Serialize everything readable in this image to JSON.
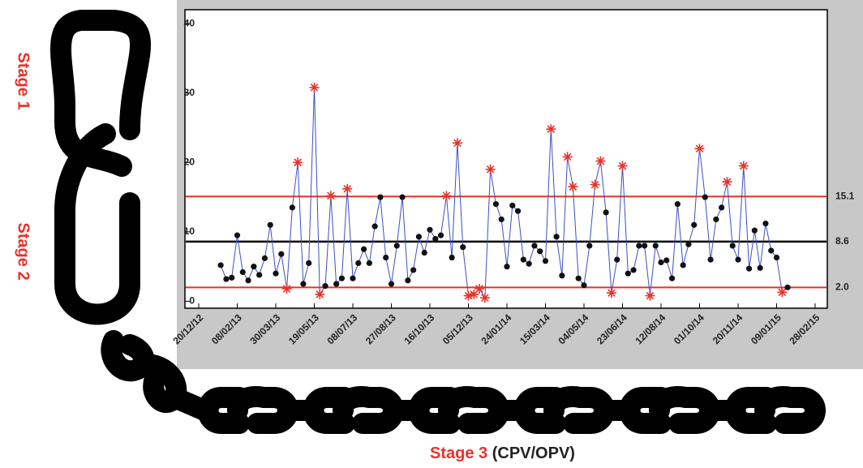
{
  "chart_data": {
    "type": "line",
    "categories": [
      "20/12/12",
      null,
      null,
      null,
      null,
      null,
      null,
      "08/02/13",
      null,
      null,
      null,
      null,
      null,
      null,
      "30/03/13",
      null,
      null,
      null,
      null,
      null,
      null,
      "19/05/13",
      null,
      null,
      null,
      null,
      null,
      null,
      "08/07/13",
      null,
      null,
      null,
      null,
      null,
      null,
      "27/08/13",
      null,
      null,
      null,
      null,
      null,
      null,
      "16/10/13",
      null,
      null,
      null,
      null,
      null,
      null,
      "05/12/13",
      null,
      null,
      null,
      null,
      null,
      null,
      "24/01/14",
      null,
      null,
      null,
      null,
      null,
      null,
      "15/03/14",
      null,
      null,
      null,
      null,
      null,
      null,
      "04/05/14",
      null,
      null,
      null,
      null,
      null,
      null,
      "23/06/14",
      null,
      null,
      null,
      null,
      null,
      null,
      "12/08/14",
      null,
      null,
      null,
      null,
      null,
      null,
      "01/10/14",
      null,
      null,
      null,
      null,
      null,
      null,
      "20/11/14",
      null,
      null,
      null,
      null,
      null,
      null,
      "09/01/15",
      null,
      null,
      null,
      null,
      null,
      null,
      "28/02/15"
    ],
    "values": [
      null,
      null,
      null,
      null,
      5.2,
      3.2,
      3.4,
      9.5,
      4.2,
      3,
      5,
      3.8,
      6.2,
      11,
      4,
      6.8,
      1.8,
      13.5,
      20,
      2.5,
      5.5,
      30.8,
      1,
      2.2,
      15.2,
      2.5,
      3.3,
      16.2,
      3.3,
      5.5,
      7.5,
      5.5,
      10.8,
      15,
      6.3,
      2.5,
      8,
      15,
      3,
      4.5,
      9.3,
      7,
      10.3,
      9,
      9.5,
      15.2,
      6.3,
      22.8,
      7.8,
      0.8,
      1,
      1.8,
      0.5,
      19,
      14,
      11.8,
      5,
      13.8,
      13,
      6,
      5.4,
      8,
      7.2,
      5.8,
      24.8,
      9.3,
      3.7,
      20.8,
      16.5,
      3.3,
      2.3,
      8,
      16.8,
      20.2,
      12.8,
      1.2,
      6,
      19.5,
      4,
      4.5,
      8,
      8,
      0.8,
      8,
      5.6,
      5.9,
      3.3,
      14,
      5.2,
      8.2,
      11,
      22,
      15,
      6,
      11.8,
      13.5,
      17.2,
      8,
      6,
      19.5,
      4.7,
      10.2,
      4.8,
      11.2,
      7.3,
      6.3,
      1.3,
      2,
      null,
      null,
      null,
      null,
      null
    ],
    "color": "#3b4fc4",
    "point_color": "#111111",
    "flag_color": "#e8322a",
    "ylim": [
      -1,
      42
    ],
    "yticks": [
      0,
      10,
      20,
      30,
      40
    ],
    "control_lines": [
      {
        "value": 15.1,
        "label": "15.1",
        "color": "#e8322a"
      },
      {
        "value": 8.6,
        "label": "8.6",
        "color": "#000000"
      },
      {
        "value": 2,
        "label": "2.0",
        "color": "#e8322a"
      }
    ],
    "stage_1": "Stage 1",
    "stage_2": "Stage 2",
    "stage_3": "Stage 3",
    "stage_3_note": "(CPV/OPV)"
  }
}
